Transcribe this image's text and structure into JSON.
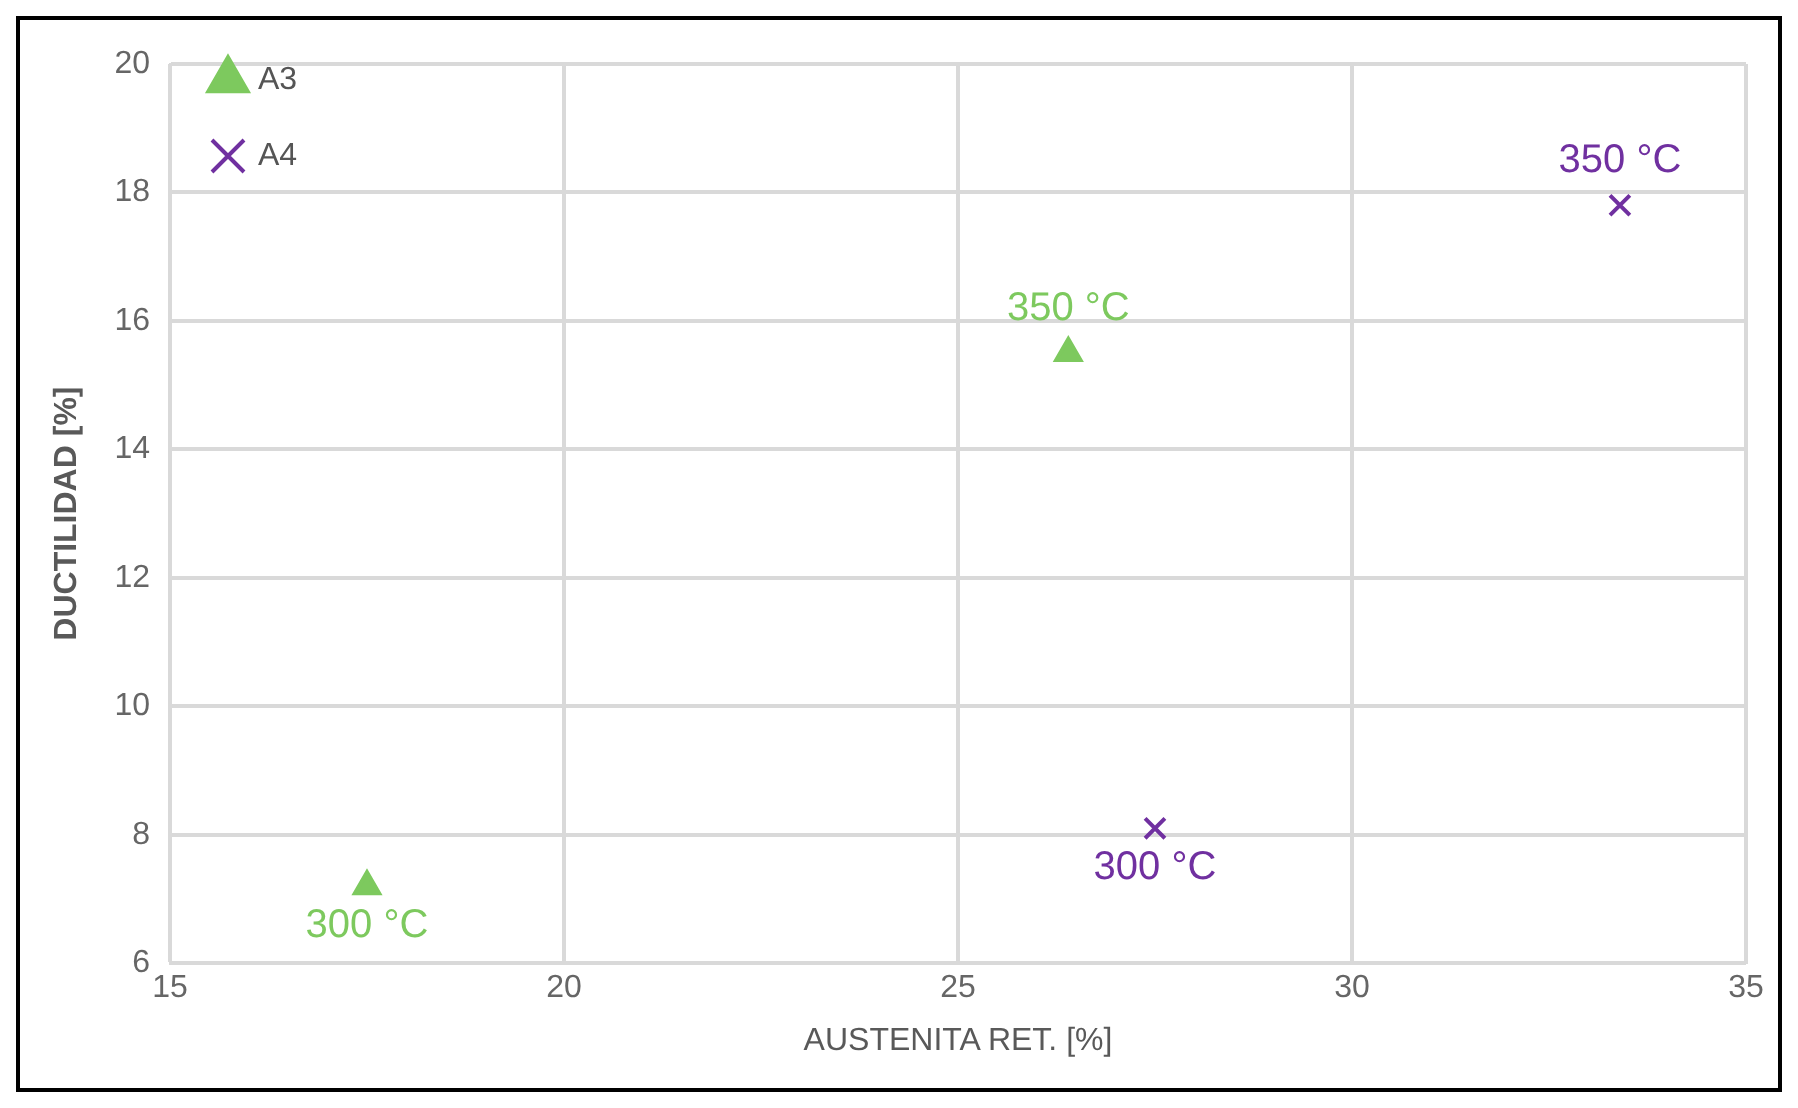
{
  "chart_data": {
    "type": "scatter",
    "xlabel": "AUSTENITA RET. [%]",
    "ylabel": "DUCTILIDAD [%]",
    "xlim": [
      15,
      35
    ],
    "xticks": [
      15,
      20,
      25,
      30,
      35
    ],
    "ylim": [
      6,
      20
    ],
    "yticks": [
      6,
      8,
      10,
      12,
      14,
      16,
      18,
      20
    ],
    "grid": true,
    "legend": "top left",
    "series": [
      {
        "name": "A3",
        "color": "#7dc95e",
        "marker": "triangle",
        "x": [
          17.5,
          26.4
        ],
        "values": [
          7.2,
          15.5
        ]
      },
      {
        "name": "A4",
        "color": "#7030a0",
        "marker": "cross",
        "x": [
          27.5,
          33.4
        ],
        "values": [
          8.1,
          17.8
        ]
      }
    ],
    "annotations": [
      {
        "text": "300 °C",
        "x": 17.5,
        "y": 7.2
      },
      {
        "text": "350 °C",
        "x": 26.4,
        "y": 15.5
      },
      {
        "text": "300 °C",
        "x": 27.5,
        "y": 8.1
      },
      {
        "text": "350 °C",
        "x": 33.4,
        "y": 17.8
      }
    ]
  }
}
